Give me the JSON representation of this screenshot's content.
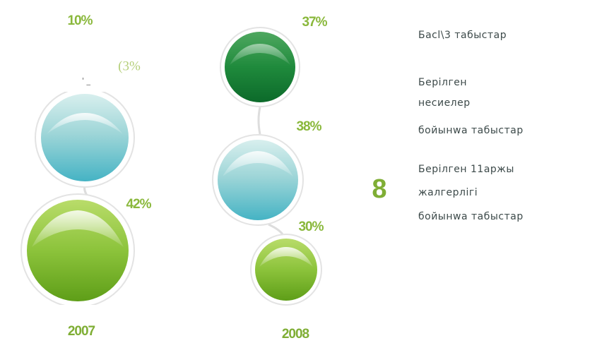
{
  "columns": [
    {
      "year": "2007",
      "items": [
        {
          "label": "10%"
        },
        {
          "label": "(3%"
        },
        {
          "label": "42%"
        }
      ],
      "note": "' _"
    },
    {
      "year": "2008",
      "items": [
        {
          "label": "37%"
        },
        {
          "label": "38%"
        },
        {
          "label": "30%"
        }
      ]
    }
  ],
  "marker": "8",
  "legend": [
    {
      "lines": [
        "Басl\\3 табыстар"
      ]
    },
    {
      "lines": [
        "Берілген",
        "несиелер",
        "бойынwa табыстар"
      ]
    },
    {
      "lines": [
        "Берілген 11аржы",
        "жалгерлігі",
        "бойынwa табыстар"
      ]
    }
  ]
}
